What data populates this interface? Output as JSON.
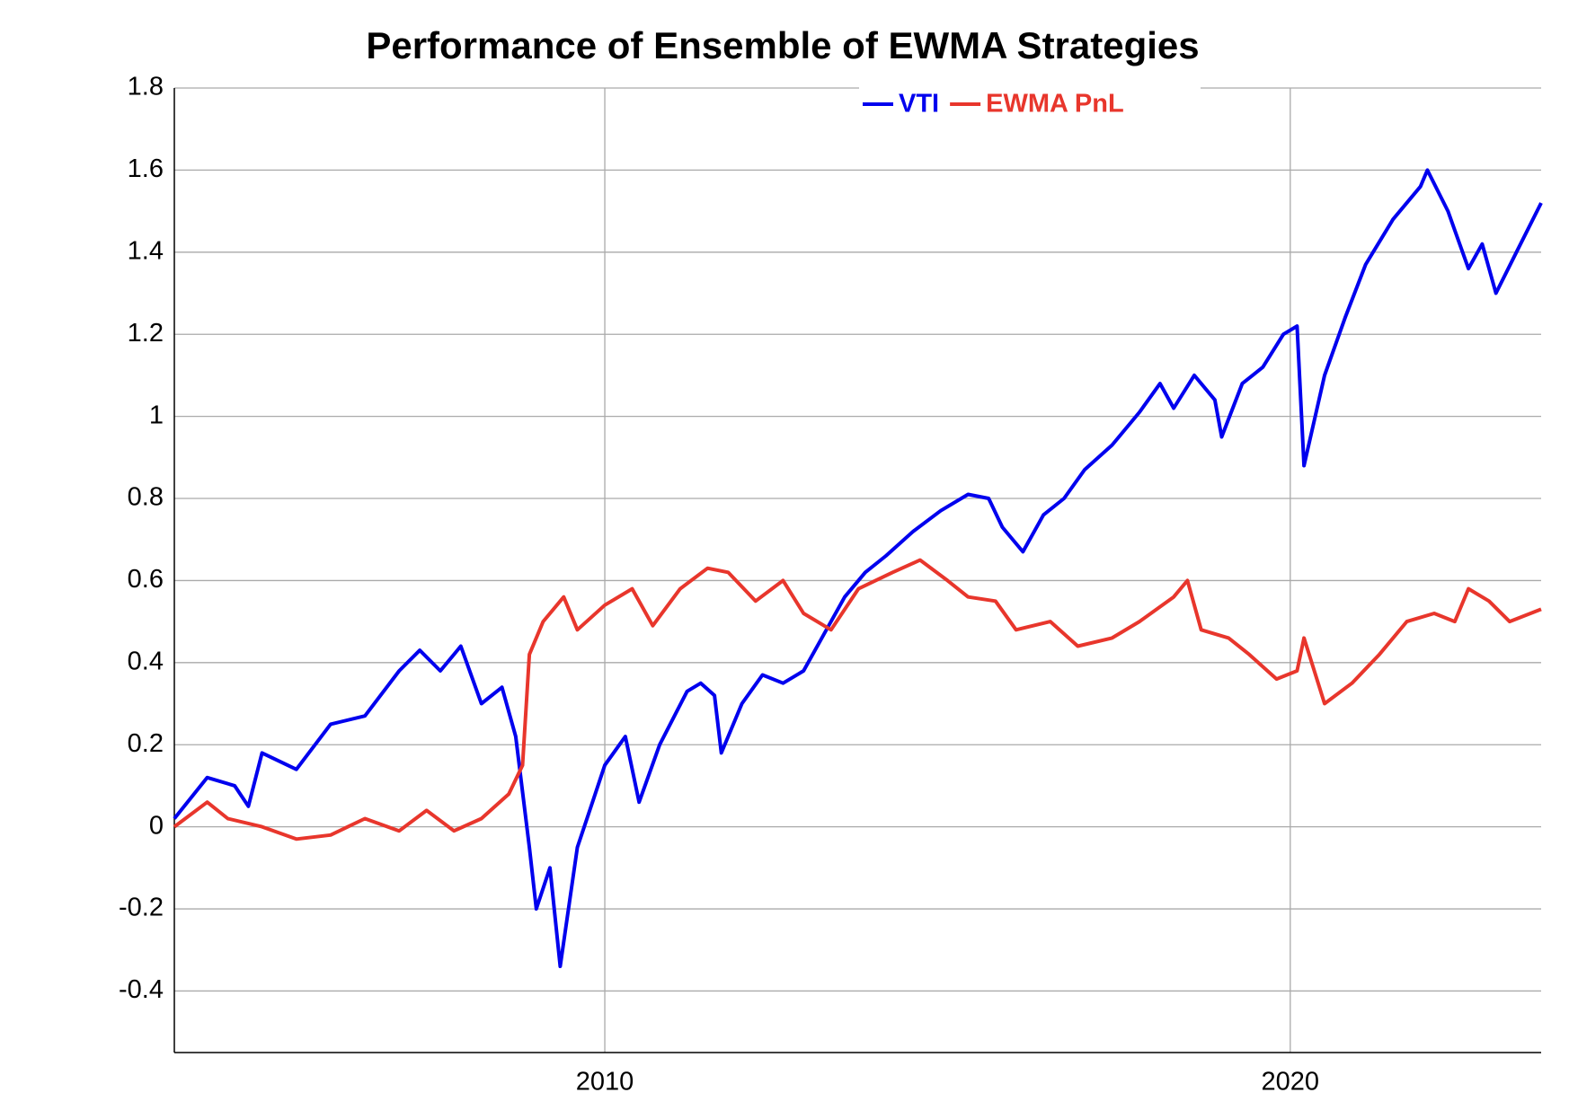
{
  "chart_data": {
    "type": "line",
    "title": "Performance of Ensemble of EWMA Strategies",
    "xlim": [
      2003.72,
      2023.66
    ],
    "ylim": [
      -0.55,
      1.8
    ],
    "xticks": [
      2010,
      2020
    ],
    "yticks": [
      -0.4,
      -0.2,
      0,
      0.2,
      0.4,
      0.6,
      0.8,
      1,
      1.2,
      1.4,
      1.6,
      1.8
    ],
    "grid": true,
    "legend": "top",
    "series": [
      {
        "name": "VTI",
        "color": "#0000ee",
        "x": [
          2003.72,
          2004.2,
          2004.6,
          2004.8,
          2005.0,
          2005.5,
          2006.0,
          2006.5,
          2007.0,
          2007.3,
          2007.6,
          2007.9,
          2008.2,
          2008.5,
          2008.7,
          2008.9,
          2009.0,
          2009.2,
          2009.35,
          2009.6,
          2009.8,
          2010.0,
          2010.3,
          2010.5,
          2010.8,
          2011.2,
          2011.4,
          2011.6,
          2011.7,
          2012.0,
          2012.3,
          2012.6,
          2012.9,
          2013.2,
          2013.5,
          2013.8,
          2014.1,
          2014.5,
          2014.9,
          2015.3,
          2015.6,
          2015.8,
          2016.1,
          2016.4,
          2016.7,
          2017.0,
          2017.4,
          2017.8,
          2018.1,
          2018.3,
          2018.6,
          2018.9,
          2019.0,
          2019.3,
          2019.6,
          2019.9,
          2020.1,
          2020.2,
          2020.5,
          2020.8,
          2021.1,
          2021.5,
          2021.9,
          2022.0,
          2022.3,
          2022.6,
          2022.8,
          2023.0,
          2023.3,
          2023.66
        ],
        "values": [
          0.02,
          0.12,
          0.1,
          0.05,
          0.18,
          0.14,
          0.25,
          0.27,
          0.38,
          0.43,
          0.38,
          0.44,
          0.3,
          0.34,
          0.22,
          -0.05,
          -0.2,
          -0.1,
          -0.34,
          -0.05,
          0.05,
          0.15,
          0.22,
          0.06,
          0.2,
          0.33,
          0.35,
          0.32,
          0.18,
          0.3,
          0.37,
          0.35,
          0.38,
          0.47,
          0.56,
          0.62,
          0.66,
          0.72,
          0.77,
          0.81,
          0.8,
          0.73,
          0.67,
          0.76,
          0.8,
          0.87,
          0.93,
          1.01,
          1.08,
          1.02,
          1.1,
          1.04,
          0.95,
          1.08,
          1.12,
          1.2,
          1.22,
          0.88,
          1.1,
          1.24,
          1.37,
          1.48,
          1.56,
          1.6,
          1.5,
          1.36,
          1.42,
          1.3,
          1.4,
          1.52
        ]
      },
      {
        "name": "EWMA PnL",
        "color": "#e8362c",
        "x": [
          2003.72,
          2004.2,
          2004.5,
          2005.0,
          2005.5,
          2006.0,
          2006.5,
          2007.0,
          2007.4,
          2007.8,
          2008.2,
          2008.6,
          2008.8,
          2008.9,
          2009.1,
          2009.4,
          2009.6,
          2010.0,
          2010.4,
          2010.7,
          2011.1,
          2011.5,
          2011.8,
          2012.2,
          2012.6,
          2012.9,
          2013.3,
          2013.7,
          2014.2,
          2014.6,
          2015.0,
          2015.3,
          2015.7,
          2016.0,
          2016.5,
          2016.9,
          2017.4,
          2017.8,
          2018.3,
          2018.5,
          2018.7,
          2019.1,
          2019.4,
          2019.8,
          2020.1,
          2020.2,
          2020.5,
          2020.9,
          2021.3,
          2021.7,
          2022.1,
          2022.4,
          2022.6,
          2022.9,
          2023.2,
          2023.66
        ],
        "values": [
          0.0,
          0.06,
          0.02,
          0.0,
          -0.03,
          -0.02,
          0.02,
          -0.01,
          0.04,
          -0.01,
          0.02,
          0.08,
          0.15,
          0.42,
          0.5,
          0.56,
          0.48,
          0.54,
          0.58,
          0.49,
          0.58,
          0.63,
          0.62,
          0.55,
          0.6,
          0.52,
          0.48,
          0.58,
          0.62,
          0.65,
          0.6,
          0.56,
          0.55,
          0.48,
          0.5,
          0.44,
          0.46,
          0.5,
          0.56,
          0.6,
          0.48,
          0.46,
          0.42,
          0.36,
          0.38,
          0.46,
          0.3,
          0.35,
          0.42,
          0.5,
          0.52,
          0.5,
          0.58,
          0.55,
          0.5,
          0.53
        ]
      }
    ]
  }
}
